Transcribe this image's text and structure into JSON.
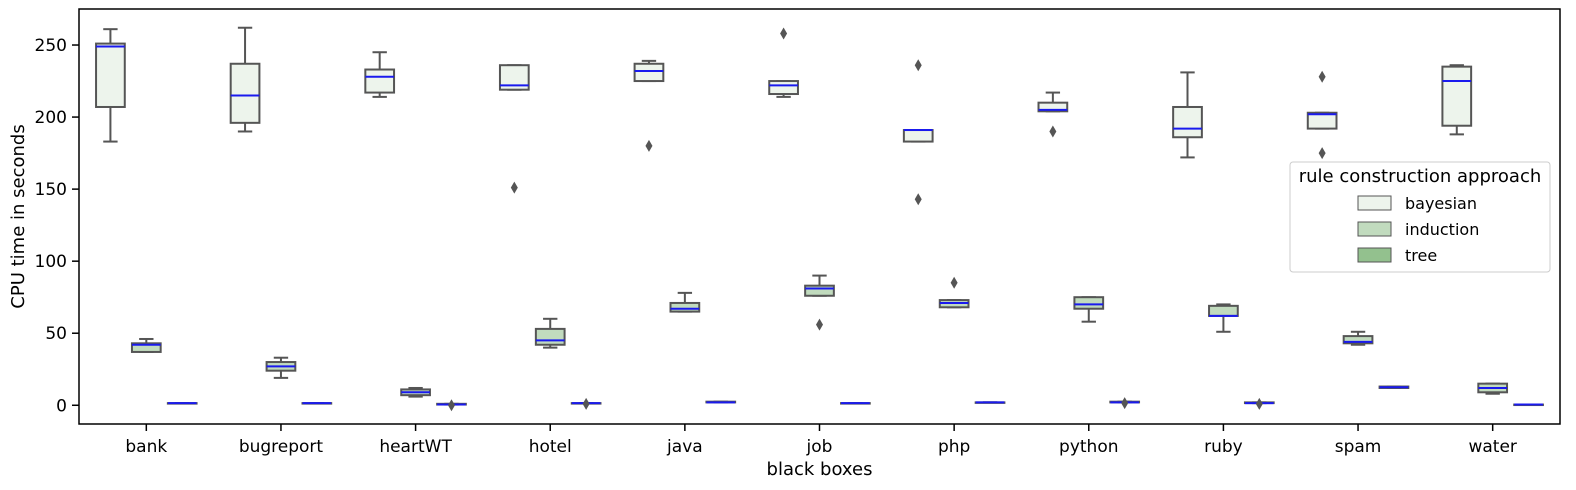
{
  "chart_data": {
    "type": "box",
    "xlabel": "black boxes",
    "ylabel": "CPU time in seconds",
    "ylim": [
      -13,
      275
    ],
    "yticks": [
      0,
      50,
      100,
      150,
      200,
      250
    ],
    "categories": [
      "bank",
      "bugreport",
      "heartWT",
      "hotel",
      "java",
      "job",
      "php",
      "python",
      "ruby",
      "spam",
      "water"
    ],
    "legend": {
      "title": "rule construction approach",
      "position": "center-right",
      "entries": [
        "bayesian",
        "induction",
        "tree"
      ]
    },
    "colors": {
      "bayesian": "#edf4ec",
      "induction": "#c1dbbe",
      "tree": "#93c18e",
      "median": "#1a1aee",
      "edge": "#555555"
    },
    "series": [
      {
        "name": "bayesian",
        "boxes": [
          {
            "whislo": 183,
            "q1": 207,
            "med": 249,
            "q3": 251,
            "whishi": 261,
            "fliers": []
          },
          {
            "whislo": 190,
            "q1": 196,
            "med": 215,
            "q3": 237,
            "whishi": 262,
            "fliers": []
          },
          {
            "whislo": 214,
            "q1": 217,
            "med": 228,
            "q3": 233,
            "whishi": 245,
            "fliers": []
          },
          {
            "whislo": 219,
            "q1": 219,
            "med": 222,
            "q3": 236,
            "whishi": 236,
            "fliers": [
              151
            ]
          },
          {
            "whislo": 225,
            "q1": 225,
            "med": 232,
            "q3": 237,
            "whishi": 239,
            "fliers": [
              180
            ]
          },
          {
            "whislo": 214,
            "q1": 216,
            "med": 222,
            "q3": 225,
            "whishi": 225,
            "fliers": [
              258
            ]
          },
          {
            "whislo": 183,
            "q1": 183,
            "med": 191,
            "q3": 191,
            "whishi": 191,
            "fliers": [
              143,
              236
            ]
          },
          {
            "whislo": 204,
            "q1": 204,
            "med": 205,
            "q3": 210,
            "whishi": 217,
            "fliers": [
              190
            ]
          },
          {
            "whislo": 172,
            "q1": 186,
            "med": 192,
            "q3": 207,
            "whishi": 231,
            "fliers": []
          },
          {
            "whislo": 192,
            "q1": 192,
            "med": 202,
            "q3": 203,
            "whishi": 203,
            "fliers": [
              175,
              228
            ]
          },
          {
            "whislo": 188,
            "q1": 194,
            "med": 225,
            "q3": 235,
            "whishi": 236,
            "fliers": []
          }
        ]
      },
      {
        "name": "induction",
        "boxes": [
          {
            "whislo": 37,
            "q1": 37,
            "med": 42,
            "q3": 43,
            "whishi": 46,
            "fliers": []
          },
          {
            "whislo": 19,
            "q1": 24,
            "med": 27,
            "q3": 30,
            "whishi": 33,
            "fliers": []
          },
          {
            "whislo": 6,
            "q1": 7,
            "med": 9,
            "q3": 11,
            "whishi": 12,
            "fliers": []
          },
          {
            "whislo": 40,
            "q1": 42,
            "med": 45,
            "q3": 53,
            "whishi": 60,
            "fliers": []
          },
          {
            "whislo": 65,
            "q1": 65,
            "med": 67,
            "q3": 71,
            "whishi": 78,
            "fliers": []
          },
          {
            "whislo": 76,
            "q1": 76,
            "med": 81,
            "q3": 83,
            "whishi": 90,
            "fliers": [
              56
            ]
          },
          {
            "whislo": 68,
            "q1": 68,
            "med": 71,
            "q3": 73,
            "whishi": 73,
            "fliers": [
              85
            ]
          },
          {
            "whislo": 58,
            "q1": 67,
            "med": 70,
            "q3": 75,
            "whishi": 75,
            "fliers": []
          },
          {
            "whislo": 51,
            "q1": 62,
            "med": 62,
            "q3": 69,
            "whishi": 70,
            "fliers": []
          },
          {
            "whislo": 42,
            "q1": 43,
            "med": 44,
            "q3": 48,
            "whishi": 51,
            "fliers": []
          },
          {
            "whislo": 8,
            "q1": 9,
            "med": 12,
            "q3": 15,
            "whishi": 15,
            "fliers": []
          }
        ]
      },
      {
        "name": "tree",
        "boxes": [
          {
            "whislo": 1.5,
            "q1": 1.5,
            "med": 1.5,
            "q3": 1.5,
            "whishi": 1.5,
            "fliers": []
          },
          {
            "whislo": 1.5,
            "q1": 1.5,
            "med": 1.5,
            "q3": 1.5,
            "whishi": 1.5,
            "fliers": []
          },
          {
            "whislo": 0.5,
            "q1": 0.5,
            "med": 0.5,
            "q3": 1,
            "whishi": 1,
            "fliers": [
              0
            ]
          },
          {
            "whislo": 1.5,
            "q1": 1.5,
            "med": 1.5,
            "q3": 1.5,
            "whishi": 1.5,
            "fliers": [
              1
            ]
          },
          {
            "whislo": 2,
            "q1": 2,
            "med": 2,
            "q3": 2.5,
            "whishi": 2.5,
            "fliers": []
          },
          {
            "whislo": 1.5,
            "q1": 1.5,
            "med": 1.5,
            "q3": 1.5,
            "whishi": 1.5,
            "fliers": []
          },
          {
            "whislo": 2,
            "q1": 2,
            "med": 2,
            "q3": 2,
            "whishi": 2,
            "fliers": []
          },
          {
            "whislo": 2,
            "q1": 2,
            "med": 2,
            "q3": 2.5,
            "whishi": 2.5,
            "fliers": [
              1.5
            ]
          },
          {
            "whislo": 1.5,
            "q1": 1.5,
            "med": 1.5,
            "q3": 2,
            "whishi": 2,
            "fliers": [
              1
            ]
          },
          {
            "whislo": 12,
            "q1": 12,
            "med": 12.5,
            "q3": 13,
            "whishi": 13,
            "fliers": []
          },
          {
            "whislo": 0.5,
            "q1": 0.5,
            "med": 0.5,
            "q3": 0.5,
            "whishi": 0.5,
            "fliers": []
          }
        ]
      }
    ]
  }
}
